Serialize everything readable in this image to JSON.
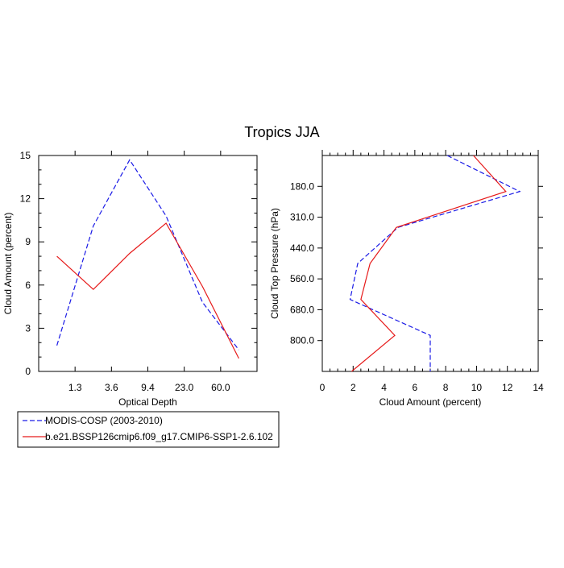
{
  "figure_title": "Tropics JJA",
  "chart_data": [
    {
      "type": "line",
      "xlabel": "Optical Depth",
      "ylabel": "Cloud Amount (percent)",
      "x_tick_labels": [
        "1.3",
        "3.6",
        "9.4",
        "23.0",
        "60.0"
      ],
      "x_bin_count": 7,
      "ylim": [
        0,
        15
      ],
      "y_ticks": [
        "0",
        "3",
        "6",
        "9",
        "12",
        "15"
      ],
      "series": [
        {
          "name": "MODIS-COSP (2003-2010)",
          "color": "#1a1ae6",
          "dash": "dashed",
          "x": [
            0,
            1,
            2,
            3,
            4,
            5
          ],
          "values": [
            1.8,
            10.1,
            14.7,
            10.8,
            4.8,
            1.5
          ]
        },
        {
          "name": "b.e21.BSSP126cmip6.f09_g17.CMIP6-SSP1-2.6.102",
          "color": "#e61a1a",
          "dash": "solid",
          "x": [
            0,
            1,
            2,
            3,
            4,
            5
          ],
          "values": [
            8.0,
            5.7,
            8.2,
            10.3,
            5.9,
            0.9
          ]
        }
      ]
    },
    {
      "type": "line",
      "xlabel": "Cloud Amount (percent)",
      "ylabel": "Cloud Top Pressure (hPa)",
      "xlim": [
        0,
        14
      ],
      "x_ticks": [
        "0",
        "2",
        "4",
        "6",
        "8",
        "10",
        "12",
        "14"
      ],
      "y_tick_labels": [
        "180.0",
        "310.0",
        "440.0",
        "560.0",
        "680.0",
        "800.0"
      ],
      "y_bin_count": 7,
      "series": [
        {
          "name": "MODIS-COSP (2003-2010)",
          "color": "#1a1ae6",
          "dash": "dashed",
          "values": [
            8.1,
            12.8,
            4.9,
            2.3,
            1.8,
            7.0,
            7.0
          ],
          "y": [
            0,
            1,
            2,
            3,
            4,
            5,
            6
          ]
        },
        {
          "name": "b.e21.BSSP126cmip6.f09_g17.CMIP6-SSP1-2.6.102",
          "color": "#e61a1a",
          "dash": "solid",
          "values": [
            9.8,
            11.9,
            4.8,
            3.1,
            2.5,
            4.7,
            1.9
          ],
          "y": [
            0,
            1,
            2,
            3,
            4,
            5,
            6
          ]
        }
      ]
    }
  ],
  "legend": {
    "items": [
      {
        "label": "MODIS-COSP (2003-2010)",
        "color": "#1a1ae6",
        "dash": "dashed"
      },
      {
        "label": "b.e21.BSSP126cmip6.f09_g17.CMIP6-SSP1-2.6.102",
        "color": "#e61a1a",
        "dash": "solid"
      }
    ]
  }
}
